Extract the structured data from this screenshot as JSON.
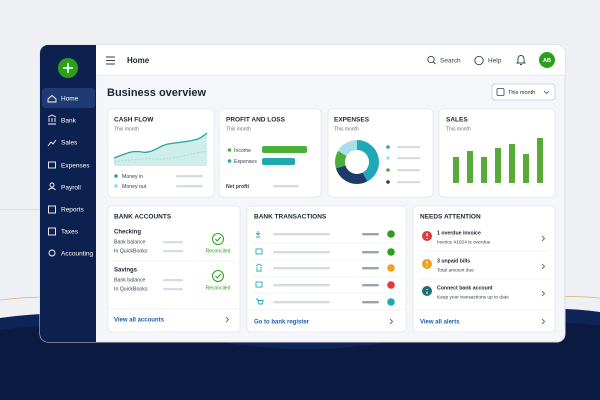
{
  "sidebar": {
    "items": [
      "Home",
      "Bank",
      "Sales",
      "Expenses",
      "Payroll",
      "Reports",
      "Taxes",
      "Accounting"
    ]
  },
  "header": {
    "title": "Home",
    "search": "Search",
    "help": "Help",
    "avatar": "AB"
  },
  "overview": {
    "title": "Business overview",
    "period": "This month"
  },
  "cards": {
    "cash_flow": {
      "title": "CASH FLOW",
      "period": "This month",
      "legend": [
        "Money in",
        "Money out"
      ]
    },
    "profit_and_loss": {
      "title": "PROFIT AND LOSS",
      "period": "This month",
      "legend": [
        "Income",
        "Expenses"
      ],
      "total": "Net profit"
    },
    "expenses": {
      "title": "EXPENSES",
      "period": "This month"
    },
    "sales": {
      "title": "SALES",
      "period": "This month"
    }
  },
  "bank_accounts": {
    "title": "BANK ACCOUNTS",
    "accounts": [
      {
        "name": "Checking",
        "rows": [
          "Bank balance",
          "In QuickBooks"
        ],
        "status": "Reconciled"
      },
      {
        "name": "Savings",
        "rows": [
          "Bank balance",
          "In QuickBooks"
        ],
        "status": "Reconciled"
      }
    ],
    "link": "View all accounts"
  },
  "bank_transactions": {
    "title": "BANK TRANSACTIONS",
    "link": "Go to bank register"
  },
  "needs_attention": {
    "title": "NEEDS ATTENTION",
    "alerts": [
      {
        "title": "1 overdue invoice",
        "detail": "Invoice #1024 is overdue"
      },
      {
        "title": "3 unpaid bills",
        "detail": "Total amount due"
      },
      {
        "title": "Connect bank account",
        "detail": "Keep your transactions up to date"
      }
    ],
    "link": "View all alerts"
  }
}
